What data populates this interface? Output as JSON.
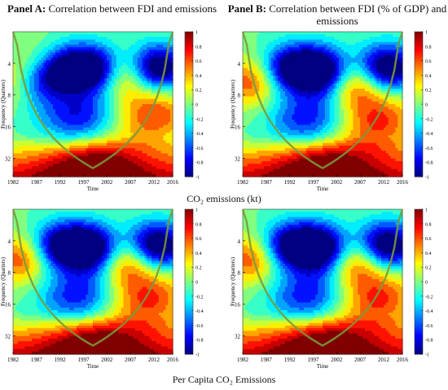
{
  "panel_a": {
    "label": "Panel A:",
    "title": "Correlation between FDI and emissions"
  },
  "panel_b": {
    "label": "Panel B:",
    "title_line1": "Correlation between FDI (% of GDP) and",
    "title_line2": "emissions"
  },
  "row_labels": {
    "top": "CO₂ emissions (kt)",
    "bottom": "Per Capita CO₂ Emissions"
  },
  "chart_data": [
    {
      "type": "heatmap",
      "id": "top-left",
      "xlabel": "Time",
      "ylabel": "Frequency (Quarters)",
      "x_ticks": [
        "1982",
        "1987",
        "1992",
        "1997",
        "2002",
        "2007",
        "2012",
        "2016"
      ],
      "y_ticks": [
        "4",
        "8",
        "16",
        "32"
      ],
      "colorbar_ticks": [
        "1",
        "0.8",
        "0.6",
        "0.4",
        "0.2",
        "0",
        "-0.2",
        "-0.4",
        "-0.6",
        "-0.8",
        "-1"
      ],
      "zlim": [
        -1,
        1
      ],
      "colormap": "jet",
      "peaks": [
        {
          "t": 1986.5,
          "p": 6,
          "v": -0.7
        },
        {
          "t": 1990.5,
          "p": 4.5,
          "v": -0.8
        },
        {
          "t": 1996,
          "p": 4.5,
          "v": -0.9
        },
        {
          "t": 2001,
          "p": 4.5,
          "v": -0.8
        },
        {
          "t": 2010.5,
          "p": 4.5,
          "v": -0.8
        },
        {
          "t": 2014.5,
          "p": 4.5,
          "v": -0.7
        },
        {
          "t": 1988.5,
          "p": 4,
          "v": 0.5
        },
        {
          "t": 2006,
          "p": 5,
          "v": 0.8
        },
        {
          "t": 1983,
          "p": 6,
          "v": 0.6
        },
        {
          "t": 1996,
          "p": 14,
          "v": -0.85
        },
        {
          "t": 2012,
          "p": 12,
          "v": 0.7
        },
        {
          "t": 1999,
          "p": 34,
          "v": 0.8
        }
      ]
    },
    {
      "type": "heatmap",
      "id": "top-right",
      "xlabel": "Time",
      "ylabel": "Frequency (Quarters)",
      "x_ticks": [
        "1982",
        "1987",
        "1992",
        "1997",
        "2002",
        "2007",
        "2012",
        "2016"
      ],
      "y_ticks": [
        "4",
        "8",
        "16",
        "32"
      ],
      "colorbar_ticks": [
        "1",
        "0.8",
        "0.6",
        "0.4",
        "0.2",
        "0",
        "-0.2",
        "-0.4",
        "-0.6",
        "-0.8",
        "-1"
      ],
      "zlim": [
        -1,
        1
      ],
      "colormap": "jet",
      "peaks": [
        {
          "t": 1991,
          "p": 4.5,
          "v": -0.85
        },
        {
          "t": 1996.5,
          "p": 4.5,
          "v": -0.9
        },
        {
          "t": 2000.5,
          "p": 5,
          "v": -0.8
        },
        {
          "t": 2010.5,
          "p": 4.5,
          "v": -0.8
        },
        {
          "t": 2014.5,
          "p": 4.5,
          "v": -0.7
        },
        {
          "t": 1984,
          "p": 6,
          "v": 0.7
        },
        {
          "t": 2006,
          "p": 6,
          "v": 0.85
        },
        {
          "t": 1996,
          "p": 15,
          "v": -0.85
        },
        {
          "t": 2011,
          "p": 14,
          "v": 0.7
        },
        {
          "t": 1999,
          "p": 34,
          "v": 0.8
        }
      ]
    },
    {
      "type": "heatmap",
      "id": "bottom-left",
      "xlabel": "Time",
      "ylabel": "Frequency (Quarters)",
      "x_ticks": [
        "1982",
        "1987",
        "1992",
        "1997",
        "2002",
        "2007",
        "2012",
        "2016"
      ],
      "y_ticks": [
        "4",
        "8",
        "16",
        "32"
      ],
      "colorbar_ticks": [
        "1",
        "0.8",
        "0.6",
        "0.4",
        "0.2",
        "0",
        "-0.2",
        "-0.4",
        "-0.6",
        "-0.8",
        "-1"
      ],
      "zlim": [
        -1,
        1
      ],
      "colormap": "jet",
      "peaks": [
        {
          "t": 1991,
          "p": 4.5,
          "v": -0.85
        },
        {
          "t": 1996.5,
          "p": 4.5,
          "v": -0.9
        },
        {
          "t": 2000.5,
          "p": 5,
          "v": -0.8
        },
        {
          "t": 2010.5,
          "p": 4.5,
          "v": -0.8
        },
        {
          "t": 2014.5,
          "p": 4.5,
          "v": -0.7
        },
        {
          "t": 1984,
          "p": 6,
          "v": 0.7
        },
        {
          "t": 2006,
          "p": 6,
          "v": 0.85
        },
        {
          "t": 1996,
          "p": 15,
          "v": -0.85
        },
        {
          "t": 2011,
          "p": 14,
          "v": 0.7
        },
        {
          "t": 1999,
          "p": 34,
          "v": 0.8
        }
      ]
    },
    {
      "type": "heatmap",
      "id": "bottom-right",
      "xlabel": "Time",
      "ylabel": "Frequency (Quarters)",
      "x_ticks": [
        "1982",
        "1987",
        "1992",
        "1997",
        "2002",
        "2007",
        "2012",
        "2016"
      ],
      "y_ticks": [
        "4",
        "8",
        "16",
        "32"
      ],
      "colorbar_ticks": [
        "1",
        "0.8",
        "0.6",
        "0.4",
        "0.2",
        "0",
        "-0.2",
        "-0.4",
        "-0.6",
        "-0.8",
        "-1"
      ],
      "zlim": [
        -1,
        1
      ],
      "colormap": "jet",
      "peaks": [
        {
          "t": 1991,
          "p": 4.5,
          "v": -0.85
        },
        {
          "t": 1996.5,
          "p": 4.5,
          "v": -0.9
        },
        {
          "t": 2000.5,
          "p": 5,
          "v": -0.8
        },
        {
          "t": 2010.5,
          "p": 4.5,
          "v": -0.8
        },
        {
          "t": 2014.5,
          "p": 4.5,
          "v": -0.7
        },
        {
          "t": 1984,
          "p": 6,
          "v": 0.7
        },
        {
          "t": 2006,
          "p": 6,
          "v": 0.85
        },
        {
          "t": 1996,
          "p": 15,
          "v": -0.85
        },
        {
          "t": 2011,
          "p": 14,
          "v": 0.7
        },
        {
          "t": 1999,
          "p": 34,
          "v": 0.8
        }
      ]
    }
  ]
}
